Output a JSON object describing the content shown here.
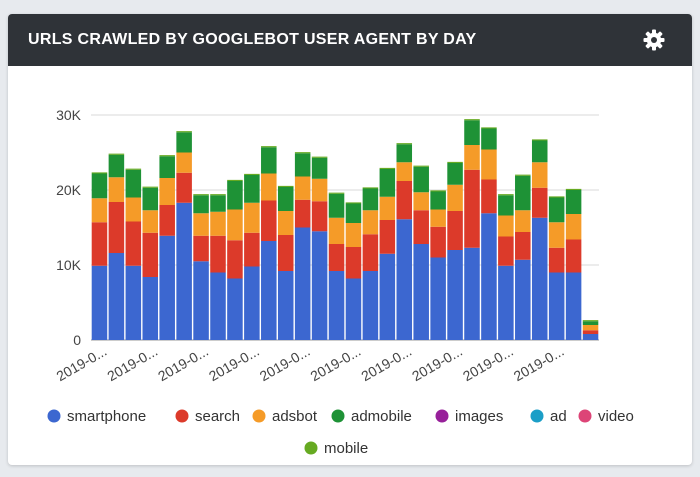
{
  "header": {
    "title": "URLS CRAWLED BY GOOGLEBOT USER AGENT BY DAY",
    "settings_icon": "gear-icon"
  },
  "chart_data": {
    "type": "bar",
    "stacked": true,
    "grid": true,
    "legend_position": "bottom",
    "ylim": [
      0,
      30000
    ],
    "yticks": [
      {
        "value": 0,
        "label": "0"
      },
      {
        "value": 10000,
        "label": "10K"
      },
      {
        "value": 20000,
        "label": "20K"
      },
      {
        "value": 30000,
        "label": "30K"
      }
    ],
    "xtick_labels": [
      "2019-0...",
      "2019-0...",
      "2019-0...",
      "2019-0...",
      "2019-0...",
      "2019-0...",
      "2019-0...",
      "2019-0...",
      "2019-0...",
      "2019-0..."
    ],
    "xtick_every": 3,
    "series": [
      {
        "name": "smartphone",
        "color": "#3c67d0",
        "values": [
          9900,
          11600,
          9900,
          8400,
          13900,
          18300,
          10500,
          9000,
          8200,
          9800,
          13200,
          9200,
          15000,
          14500,
          9200,
          8200,
          9200,
          11500,
          16100,
          12800,
          11000,
          12000,
          12300,
          16900,
          9900,
          10700,
          16300,
          9000,
          9000,
          800
        ]
      },
      {
        "name": "search",
        "color": "#dc3a2a",
        "values": [
          5800,
          6800,
          5900,
          5900,
          4100,
          4000,
          3400,
          4900,
          5100,
          4500,
          5400,
          4800,
          3700,
          4000,
          3600,
          4200,
          4900,
          4500,
          5100,
          4500,
          4100,
          5200,
          10400,
          4500,
          3900,
          3700,
          4000,
          3300,
          4400,
          500
        ]
      },
      {
        "name": "adsbot",
        "color": "#f59b28",
        "values": [
          3200,
          3300,
          3200,
          3000,
          3600,
          2700,
          3000,
          3200,
          4100,
          4000,
          3600,
          3200,
          3100,
          3000,
          3500,
          3200,
          3200,
          3100,
          2500,
          2400,
          2300,
          3500,
          3300,
          4000,
          2800,
          2900,
          3400,
          3400,
          3400,
          700
        ]
      },
      {
        "name": "admobile",
        "color": "#1e9236",
        "values": [
          3300,
          3000,
          3700,
          3000,
          2900,
          2700,
          2400,
          2200,
          3800,
          3700,
          3500,
          3200,
          3100,
          2800,
          3200,
          2600,
          2900,
          3700,
          2400,
          3400,
          2400,
          2900,
          3300,
          2800,
          2700,
          4600,
          2900,
          3300,
          3200,
          500
        ]
      },
      {
        "name": "images",
        "color": "#97209a",
        "values": [
          0,
          0,
          0,
          0,
          0,
          0,
          0,
          0,
          0,
          0,
          0,
          0,
          0,
          0,
          0,
          0,
          0,
          0,
          0,
          0,
          0,
          0,
          0,
          0,
          0,
          0,
          0,
          0,
          0,
          0
        ]
      },
      {
        "name": "ad",
        "color": "#1b9ec7",
        "values": [
          0,
          0,
          0,
          0,
          0,
          0,
          0,
          0,
          0,
          0,
          0,
          0,
          0,
          0,
          0,
          0,
          0,
          0,
          0,
          0,
          0,
          0,
          0,
          0,
          0,
          0,
          0,
          0,
          0,
          0
        ]
      },
      {
        "name": "video",
        "color": "#dd4477",
        "values": [
          0,
          0,
          0,
          0,
          0,
          0,
          0,
          0,
          0,
          0,
          0,
          0,
          0,
          0,
          0,
          0,
          0,
          0,
          0,
          0,
          0,
          0,
          0,
          0,
          0,
          0,
          0,
          0,
          0,
          0
        ]
      },
      {
        "name": "mobile",
        "color": "#66aa22",
        "values": [
          150,
          150,
          150,
          150,
          150,
          150,
          150,
          150,
          150,
          150,
          150,
          150,
          150,
          150,
          150,
          150,
          150,
          150,
          150,
          150,
          150,
          150,
          150,
          150,
          150,
          150,
          150,
          150,
          150,
          150
        ]
      }
    ]
  }
}
